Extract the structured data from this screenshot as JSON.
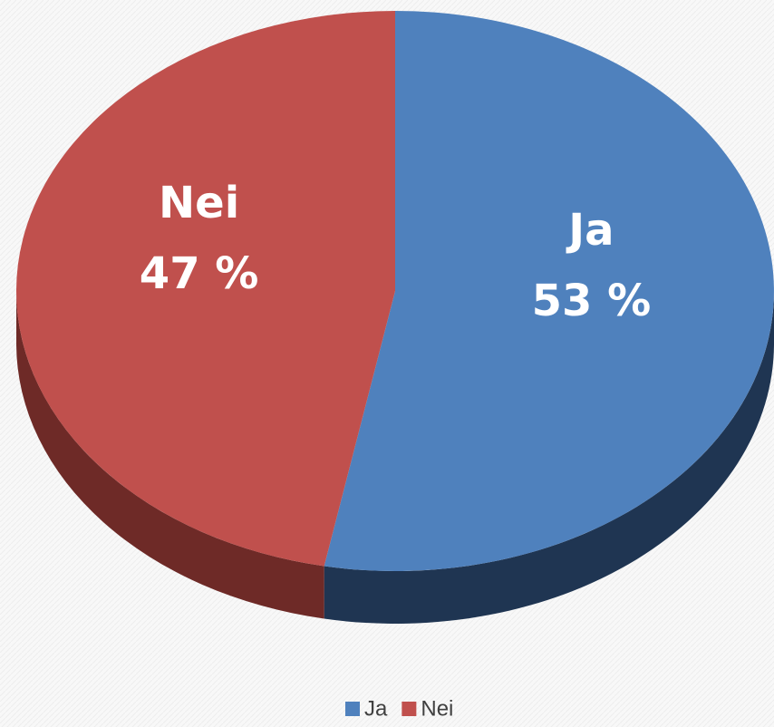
{
  "chart_data": {
    "type": "pie",
    "categories": [
      "Ja",
      "Nei"
    ],
    "values": [
      53,
      47
    ],
    "value_labels": [
      "53 %",
      "47 %"
    ],
    "colors": [
      "#4f81bd",
      "#c0504d"
    ],
    "side_colors": [
      "#1f3552",
      "#6e2a27"
    ],
    "legend": "bottom"
  }
}
